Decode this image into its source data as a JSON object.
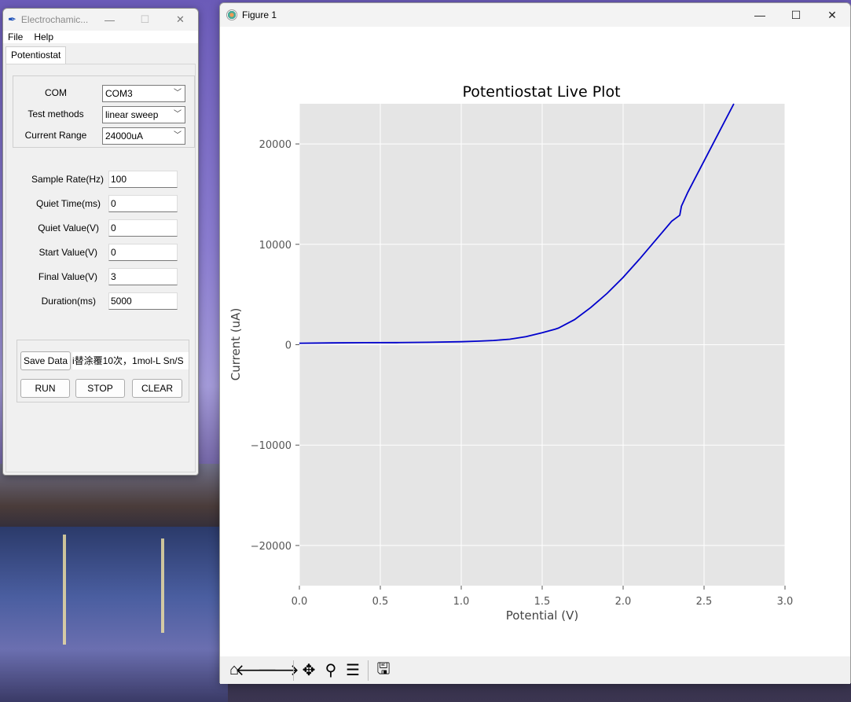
{
  "tk_window": {
    "title": "Electrochamic...",
    "menu": [
      "File",
      "Help"
    ],
    "tab": "Potentiostat",
    "settings": [
      {
        "label": "COM",
        "value": "COM3"
      },
      {
        "label": "Test methods",
        "value": "linear sweep"
      },
      {
        "label": "Current Range",
        "value": "24000uA"
      }
    ],
    "params": [
      {
        "label": "Sample Rate(Hz)",
        "value": "100"
      },
      {
        "label": "Quiet Time(ms)",
        "value": "0"
      },
      {
        "label": "Quiet Value(V)",
        "value": "0"
      },
      {
        "label": "Start Value(V)",
        "value": "0"
      },
      {
        "label": "Final Value(V)",
        "value": "3"
      },
      {
        "label": "Duration(ms)",
        "value": "5000"
      }
    ],
    "save_button": "Save Data",
    "filename": "i替涂覆10次，1mol-L Sn/S",
    "run_button": "RUN",
    "stop_button": "STOP",
    "clear_button": "CLEAR"
  },
  "figure_window": {
    "title": "Figure 1",
    "toolbar": [
      "home-icon",
      "back-icon",
      "forward-icon",
      "pan-icon",
      "zoom-icon",
      "configure-subplots-icon",
      "save-icon"
    ]
  },
  "chart_data": {
    "type": "line",
    "title": "Potentiostat Live Plot",
    "xlabel": "Potential (V)",
    "ylabel": "Current (uA)",
    "xlim": [
      0,
      3.0
    ],
    "ylim": [
      -24000,
      24000
    ],
    "xticks": [
      "0.0",
      "0.5",
      "1.0",
      "1.5",
      "2.0",
      "2.5",
      "3.0"
    ],
    "yticks": [
      "−20000",
      "−10000",
      "0",
      "10000",
      "20000"
    ],
    "ytick_values": [
      -20000,
      -10000,
      0,
      10000,
      20000
    ],
    "xtick_values": [
      0,
      0.5,
      1.0,
      1.5,
      2.0,
      2.5,
      3.0
    ],
    "grid": true,
    "line_color": "#0000cc",
    "background": "#e5e5e5",
    "series": [
      {
        "x": [
          0,
          0.2,
          0.4,
          0.6,
          0.8,
          1.0,
          1.1,
          1.2,
          1.3,
          1.4,
          1.5,
          1.58,
          1.6,
          1.7,
          1.8,
          1.9,
          2.0,
          2.1,
          2.2,
          2.3,
          2.35,
          2.36,
          2.4,
          2.5,
          2.6,
          2.7,
          2.76
        ],
        "y": [
          150,
          180,
          200,
          210,
          240,
          300,
          350,
          420,
          550,
          800,
          1200,
          1550,
          1650,
          2500,
          3700,
          5100,
          6700,
          8500,
          10400,
          12300,
          12900,
          13800,
          15200,
          18300,
          21400,
          24500,
          26500
        ]
      }
    ]
  }
}
